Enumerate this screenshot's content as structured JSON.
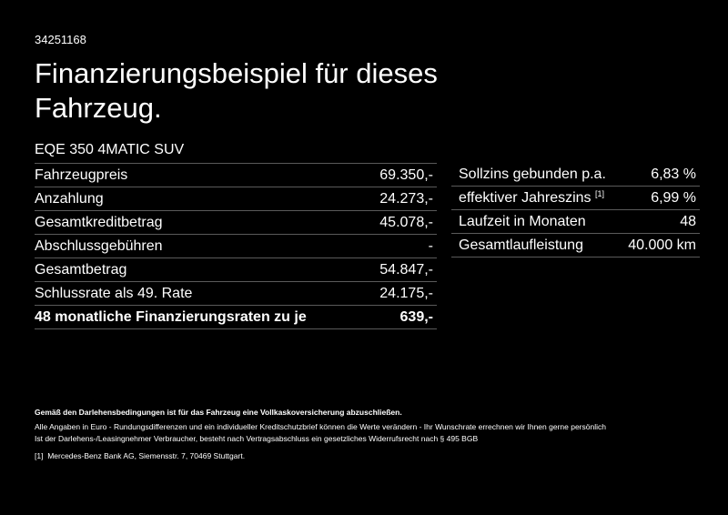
{
  "document_id": "34251168",
  "title": "Finanzierungsbeispiel für dieses Fahrzeug.",
  "model": "EQE 350 4MATIC SUV",
  "left_table": [
    {
      "label": "Fahrzeugpreis",
      "value": "69.350,-"
    },
    {
      "label": "Anzahlung",
      "value": "24.273,-"
    },
    {
      "label": "Gesamtkreditbetrag",
      "value": "45.078,-"
    },
    {
      "label": "Abschlussgebühren",
      "value": "-"
    },
    {
      "label": "Gesamtbetrag",
      "value": "54.847,-"
    },
    {
      "label": "Schlussrate als 49. Rate",
      "value": "24.175,-"
    },
    {
      "label": "48 monatliche Finanzierungsraten zu je",
      "value": "639,-",
      "bold": true
    }
  ],
  "right_table": [
    {
      "label": "Sollzins gebunden p.a.",
      "value": "6,83 %"
    },
    {
      "label": "effektiver Jahreszins",
      "sup": "[1]",
      "value": "6,99 %"
    },
    {
      "label": "Laufzeit in Monaten",
      "value": "48"
    },
    {
      "label": "Gesamtlaufleistung",
      "value": "40.000 km"
    }
  ],
  "notes": {
    "bold": "Gemäß den Darlehensbedingungen ist für das Fahrzeug eine Vollkaskoversicherung abzuschließen.",
    "line1": "Alle Angaben in Euro - Rundungsdifferenzen und ein individueller Kreditschutzbrief können die Werte verändern - Ihr Wunschrate errechnen wir Ihnen gerne persönlich",
    "line2": "Ist der Darlehens-/Leasingnehmer Verbraucher, besteht nach Vertragsabschluss ein gesetzliches Widerrufsrecht nach § 495 BGB",
    "footnote_mark": "[1]",
    "footnote": "Mercedes-Benz Bank AG, Siemensstr. 7, 70469 Stuttgart."
  }
}
